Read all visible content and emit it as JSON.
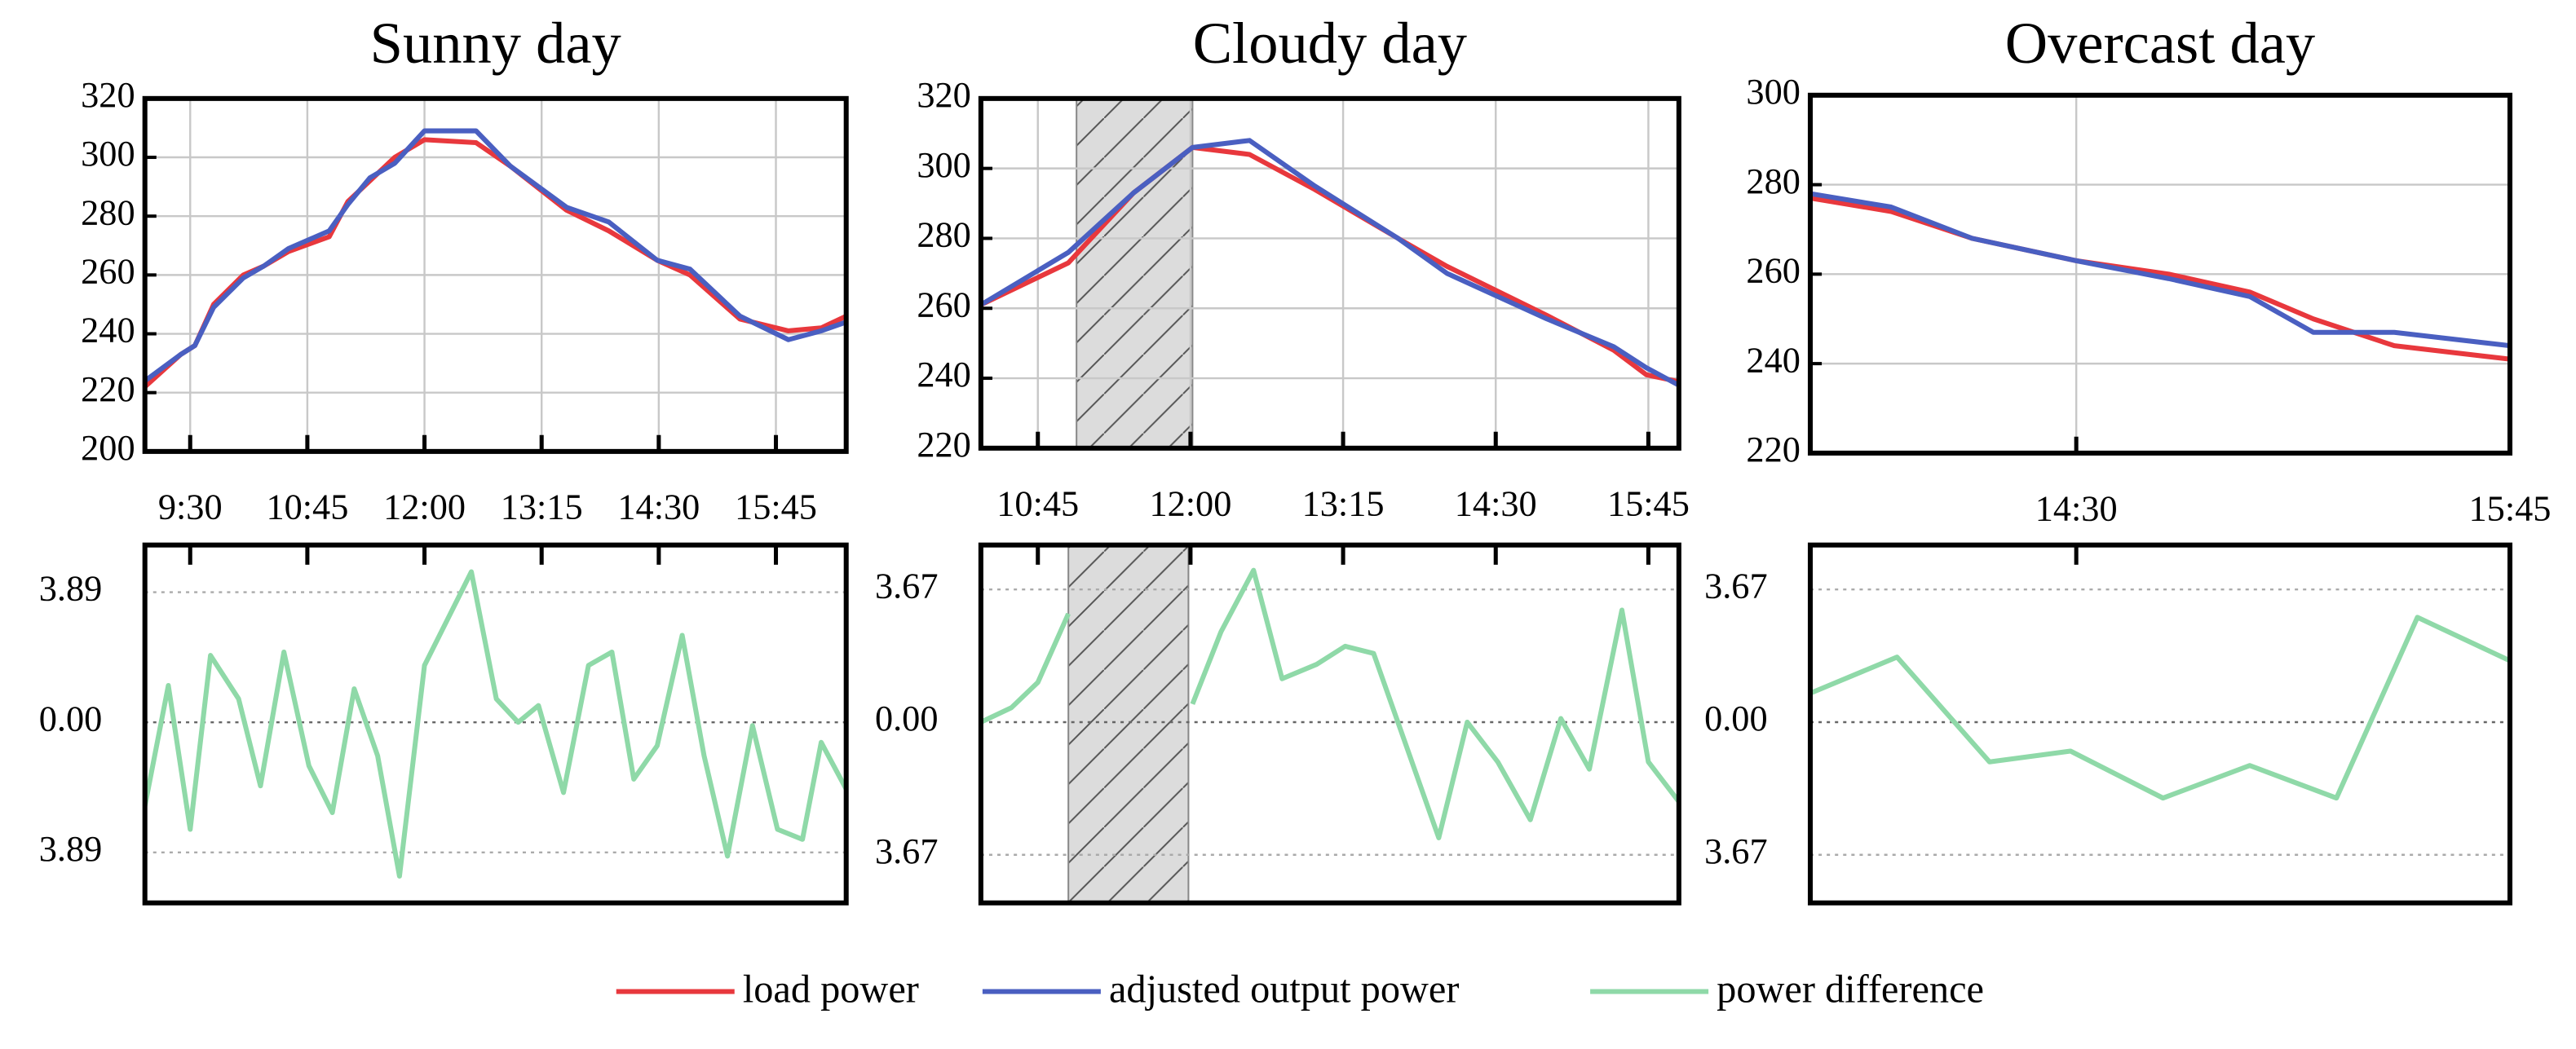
{
  "chart_data": [
    {
      "type": "line",
      "title": "Sunny day",
      "x": [
        541,
        564,
        573,
        585,
        604,
        617,
        633,
        659,
        671,
        685,
        701,
        720,
        753,
        775,
        811,
        838,
        869,
        890,
        922,
        953,
        974,
        990
      ],
      "series": [
        {
          "name": "load power",
          "color": "#e8383d",
          "values": [
            222,
            233,
            236,
            250,
            260,
            263,
            268,
            273,
            285,
            292,
            300,
            306,
            305,
            297,
            282,
            275,
            265,
            260,
            245,
            241,
            242,
            246
          ]
        },
        {
          "name": "adjusted output power",
          "color": "#4a5fc1",
          "values": [
            224,
            233,
            236,
            249,
            259,
            263,
            269,
            275,
            284,
            293,
            298,
            309,
            309,
            297,
            283,
            278,
            265,
            262,
            246,
            238,
            241,
            244
          ]
        }
      ],
      "xlim": [
        541,
        990
      ],
      "xticks": [
        {
          "value": 570,
          "label": "9:30"
        },
        {
          "value": 645,
          "label": "10:45"
        },
        {
          "value": 720,
          "label": "12:00"
        },
        {
          "value": 795,
          "label": "13:15"
        },
        {
          "value": 870,
          "label": "14:30"
        },
        {
          "value": 945,
          "label": "15:45"
        }
      ],
      "ylim": [
        200,
        320
      ],
      "yticks": [
        200,
        220,
        240,
        260,
        280,
        300,
        320
      ],
      "grid": true
    },
    {
      "type": "difference",
      "x": [
        541,
        556,
        570,
        583,
        601,
        615,
        630,
        646,
        661,
        675,
        690,
        704,
        720,
        750,
        766,
        780,
        793,
        809,
        825,
        840,
        854,
        869,
        885,
        899,
        914,
        930,
        946,
        962,
        974,
        990
      ],
      "series": [
        {
          "name": "power difference",
          "color": "#8fd9a8",
          "values": [
            -2.5,
            1.1,
            -3.2,
            2.0,
            0.7,
            -1.9,
            2.1,
            -1.3,
            -2.7,
            1.0,
            -1.0,
            -4.6,
            1.7,
            4.5,
            0.7,
            0,
            0.5,
            -2.1,
            1.7,
            2.1,
            -1.7,
            -0.7,
            2.6,
            -1.0,
            -4.0,
            -0.1,
            -3.2,
            -3.5,
            -0.6,
            -2.0
          ]
        }
      ],
      "xlim": [
        541,
        990
      ],
      "ylim": [
        -5.4,
        5.3
      ],
      "yticks": [
        {
          "value": -3.89,
          "label": "3.89"
        },
        {
          "value": 0,
          "label": "0.00"
        },
        {
          "value": 3.89,
          "label": "3.89"
        }
      ],
      "grid": true
    },
    {
      "type": "line",
      "title": "Cloudy day",
      "x": [
        617,
        660,
        692,
        721,
        749,
        781,
        822,
        846,
        895,
        928,
        944,
        960
      ],
      "series": [
        {
          "name": "load power",
          "color": "#e8383d",
          "values": [
            261,
            273,
            293,
            306,
            304,
            294,
            280,
            272,
            258,
            248,
            241,
            239
          ]
        },
        {
          "name": "adjusted output power",
          "color": "#4a5fc1",
          "values": [
            261,
            276,
            293,
            306,
            308,
            295,
            280,
            270,
            257,
            249,
            243,
            238
          ]
        }
      ],
      "xlim": [
        617,
        960
      ],
      "xticks": [
        {
          "value": 645,
          "label": "10:45"
        },
        {
          "value": 720,
          "label": "12:00"
        },
        {
          "value": 795,
          "label": "13:15"
        },
        {
          "value": 870,
          "label": "14:30"
        },
        {
          "value": 945,
          "label": "15:45"
        }
      ],
      "ylim": [
        220,
        320
      ],
      "yticks": [
        220,
        240,
        260,
        280,
        300,
        320
      ],
      "grid": true,
      "highlight_x": [
        664,
        721
      ]
    },
    {
      "type": "difference",
      "x": [
        617,
        632,
        645,
        660,
        692,
        721,
        735,
        751,
        765,
        782,
        796,
        810,
        842,
        856,
        871,
        887,
        902,
        916,
        932,
        945,
        960
      ],
      "series": [
        {
          "name": "power difference",
          "color": "#8fd9a8",
          "values": [
            0,
            0.4,
            1.1,
            3.0,
            null,
            0.5,
            2.5,
            4.2,
            1.2,
            1.6,
            2.1,
            1.9,
            -3.2,
            0,
            -1.1,
            -2.7,
            0.1,
            -1.3,
            3.1,
            -1.1,
            -2.2
          ]
        }
      ],
      "xlim": [
        617,
        960
      ],
      "ylim": [
        -5.0,
        4.9
      ],
      "yticks": [
        {
          "value": -3.67,
          "label": "3.67"
        },
        {
          "value": 0,
          "label": "0.00"
        },
        {
          "value": 3.67,
          "label": "3.67"
        }
      ],
      "grid": true,
      "highlight_x": [
        660,
        719
      ]
    },
    {
      "type": "line",
      "title": "Overcast day",
      "x": [
        824,
        838,
        852,
        870,
        886,
        900,
        911,
        925,
        945
      ],
      "series": [
        {
          "name": "load power",
          "color": "#e8383d",
          "values": [
            277,
            274,
            268,
            263,
            260,
            256,
            250,
            244,
            241
          ]
        },
        {
          "name": "adjusted output power",
          "color": "#4a5fc1",
          "values": [
            278,
            275,
            268,
            263,
            259,
            255,
            247,
            247,
            244
          ]
        }
      ],
      "xlim": [
        824,
        945
      ],
      "xticks": [
        {
          "value": 870,
          "label": "14:30"
        },
        {
          "value": 945,
          "label": "15:45"
        }
      ],
      "ylim": [
        220,
        300
      ],
      "yticks": [
        220,
        240,
        260,
        280,
        300
      ],
      "grid": true
    },
    {
      "type": "difference",
      "x": [
        824,
        839,
        855,
        869,
        885,
        900,
        915,
        929,
        945
      ],
      "series": [
        {
          "name": "power difference",
          "color": "#8fd9a8",
          "values": [
            0.8,
            1.8,
            -1.1,
            -0.8,
            -2.1,
            -1.2,
            -2.1,
            2.9,
            1.7
          ]
        }
      ],
      "xlim": [
        824,
        945
      ],
      "ylim": [
        -5.0,
        4.9
      ],
      "yticks": [
        {
          "value": -3.67,
          "label": "3.67"
        },
        {
          "value": 0,
          "label": "0.00"
        },
        {
          "value": 3.67,
          "label": "3.67"
        }
      ],
      "grid": true
    }
  ]
}
